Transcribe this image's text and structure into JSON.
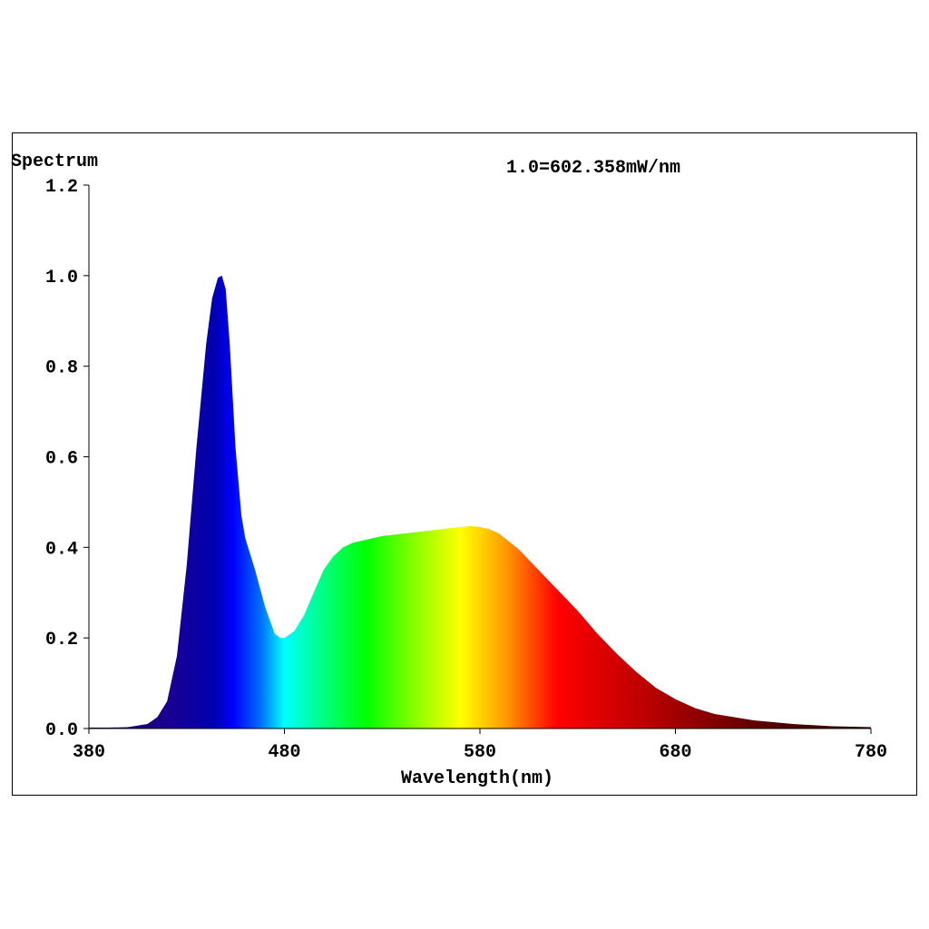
{
  "chart_data": {
    "type": "area",
    "ylabel": "Spectrum",
    "xlabel": "Wavelength(nm)",
    "annotation": "1.0=602.358mW/nm",
    "xlim": [
      380,
      780
    ],
    "ylim": [
      0,
      1.2
    ],
    "x_ticks": [
      380,
      480,
      580,
      680,
      780
    ],
    "y_ticks": [
      "0.0",
      "0.2",
      "0.4",
      "0.6",
      "0.8",
      "1.0",
      "1.2"
    ],
    "fill": "visible-spectrum gradient",
    "series": [
      {
        "x": [
          380,
          390,
          400,
          410,
          415,
          420,
          425,
          430,
          435,
          440,
          443,
          446,
          448,
          450,
          452,
          455,
          458,
          460,
          465,
          470,
          475,
          478,
          480,
          485,
          490,
          495,
          500,
          505,
          510,
          515,
          520,
          530,
          540,
          550,
          560,
          570,
          575,
          580,
          585,
          590,
          600,
          610,
          620,
          630,
          640,
          650,
          660,
          670,
          680,
          690,
          700,
          720,
          740,
          760,
          780
        ],
        "y": [
          0.002,
          0.002,
          0.003,
          0.01,
          0.025,
          0.06,
          0.16,
          0.36,
          0.62,
          0.85,
          0.95,
          0.995,
          1.0,
          0.97,
          0.85,
          0.62,
          0.47,
          0.42,
          0.35,
          0.27,
          0.21,
          0.2,
          0.2,
          0.215,
          0.25,
          0.3,
          0.35,
          0.38,
          0.4,
          0.41,
          0.415,
          0.425,
          0.43,
          0.435,
          0.44,
          0.445,
          0.447,
          0.445,
          0.44,
          0.43,
          0.395,
          0.35,
          0.305,
          0.26,
          0.21,
          0.165,
          0.125,
          0.09,
          0.065,
          0.045,
          0.032,
          0.018,
          0.01,
          0.005,
          0.003
        ]
      }
    ]
  }
}
